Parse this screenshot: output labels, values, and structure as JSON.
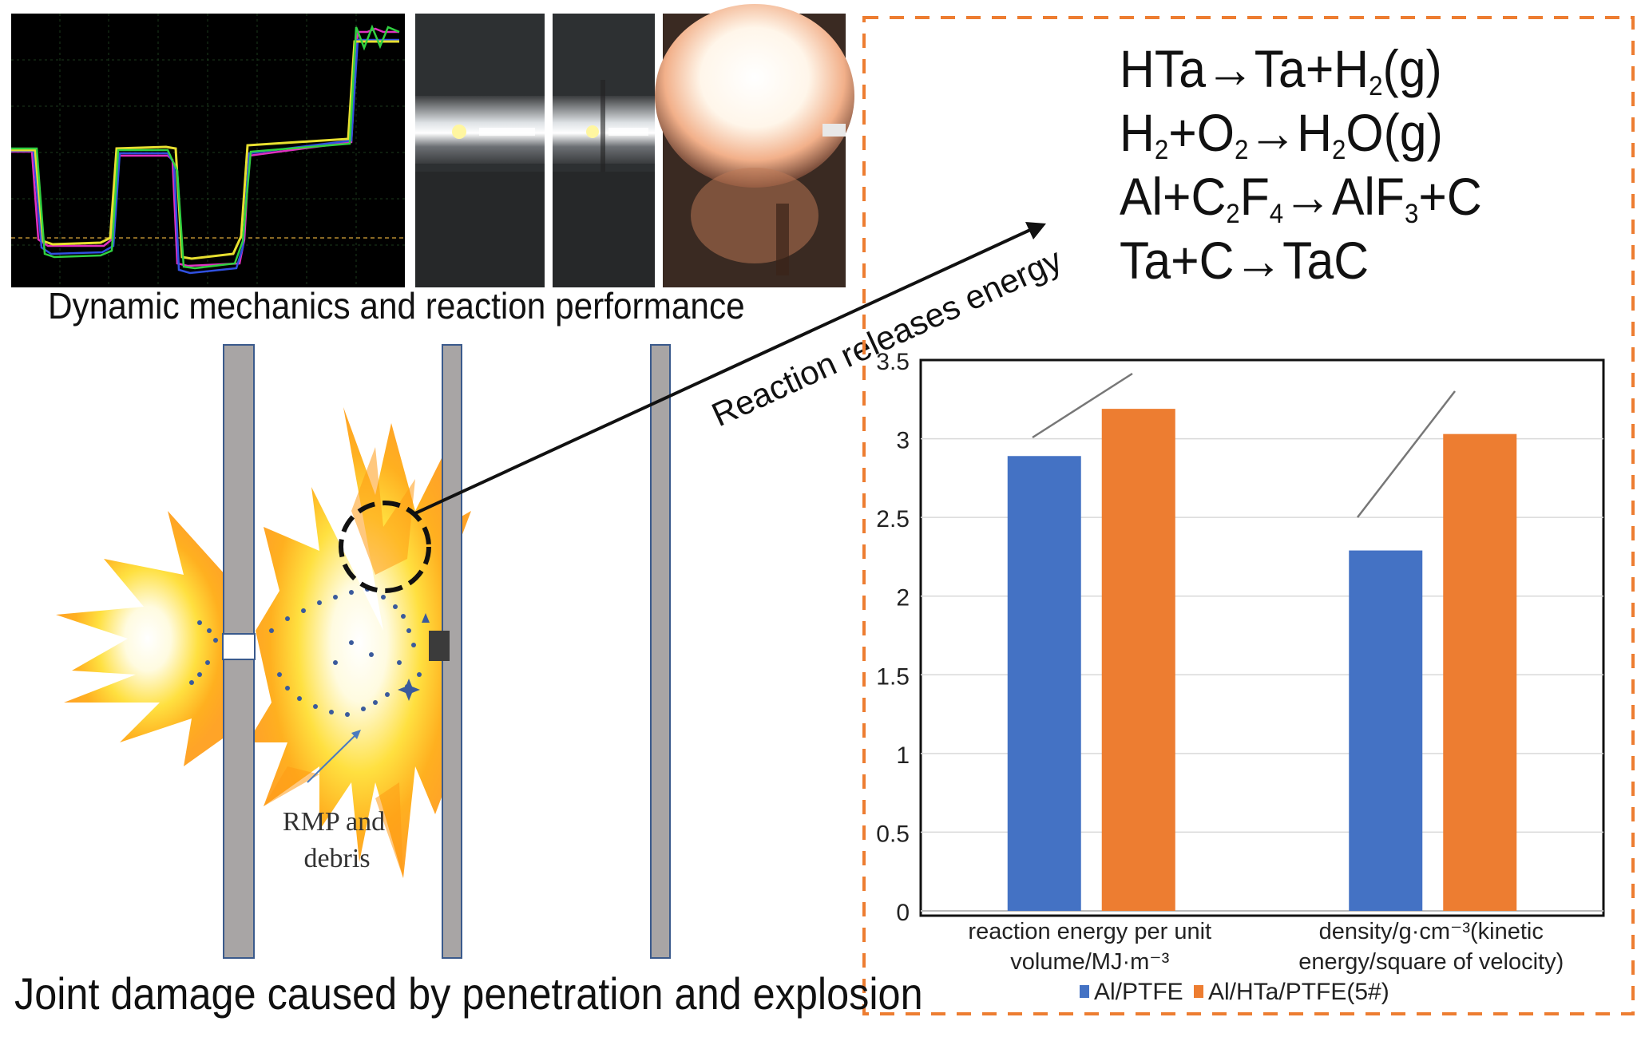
{
  "captions": {
    "dynamic": "Dynamic mechanics and reaction performance",
    "joint": "Joint damage caused by penetration and explosion",
    "arrow": "Reaction releases energy",
    "rmp_line1": "RMP and",
    "rmp_line2": "debris"
  },
  "equations": {
    "eq1": [
      [
        "HTa→Ta+H",
        ""
      ],
      [
        "2",
        "sub"
      ],
      [
        "(g)",
        ""
      ]
    ],
    "eq2": [
      [
        "H",
        ""
      ],
      [
        "2",
        "sub"
      ],
      [
        "+O",
        ""
      ],
      [
        "2",
        "sub"
      ],
      [
        "→H",
        ""
      ],
      [
        "2",
        "sub"
      ],
      [
        "O(g)",
        ""
      ]
    ],
    "eq3": [
      [
        "Al+C",
        ""
      ],
      [
        "2",
        "sub"
      ],
      [
        "F",
        ""
      ],
      [
        "4",
        "sub"
      ],
      [
        "→AlF",
        ""
      ],
      [
        "3",
        "sub"
      ],
      [
        "+C",
        ""
      ]
    ],
    "eq4": [
      [
        "Ta+C→TaC",
        ""
      ]
    ]
  },
  "colors": {
    "series1": "#4472c4",
    "series2": "#ed7d31",
    "frame_dash": "#ed7d31",
    "plate": "#a8a5a5",
    "plate_border": "#3a5a8c"
  },
  "chart_data": {
    "type": "bar",
    "categories": [
      [
        "reaction energy per unit",
        "volume/MJ·m⁻³"
      ],
      [
        "density/g·cm⁻³(kinetic",
        "energy/square of velocity)"
      ]
    ],
    "series": [
      {
        "name": "Al/PTFE",
        "values": [
          2.89,
          2.29
        ]
      },
      {
        "name": "Al/HTa/PTFE(5#)",
        "values": [
          3.19,
          3.03
        ]
      }
    ],
    "ylim": [
      0,
      3.5
    ],
    "yticks": [
      "0",
      "0.5",
      "1",
      "1.5",
      "2",
      "2.5",
      "3",
      "3.5"
    ],
    "grid": true,
    "legend": "bottom"
  }
}
